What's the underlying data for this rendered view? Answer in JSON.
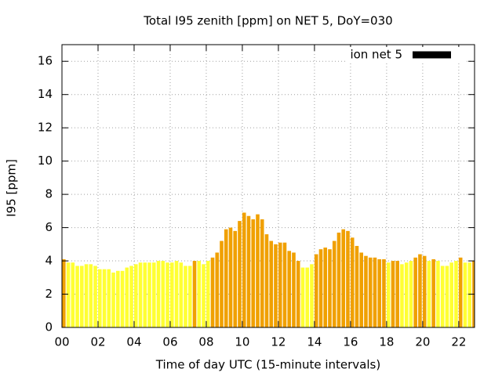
{
  "chart_data": {
    "type": "bar",
    "title": "Total I95 zenith [ppm] on NET 5, DoY=030",
    "x_label": "Time of day UTC (15-minute intervals)",
    "y_label": "I95 [ppm]",
    "x": [
      0,
      0.25,
      0.5,
      0.75,
      1,
      1.25,
      1.5,
      1.75,
      2,
      2.25,
      2.5,
      2.75,
      3,
      3.25,
      3.5,
      3.75,
      4,
      4.25,
      4.5,
      4.75,
      5,
      5.25,
      5.5,
      5.75,
      6,
      6.25,
      6.5,
      6.75,
      7,
      7.25,
      7.5,
      7.75,
      8,
      8.25,
      8.5,
      8.75,
      9,
      9.25,
      9.5,
      9.75,
      10,
      10.25,
      10.5,
      10.75,
      11,
      11.25,
      11.5,
      11.75,
      12,
      12.25,
      12.5,
      12.75,
      13,
      13.25,
      13.5,
      13.75,
      14,
      14.25,
      14.5,
      14.75,
      15,
      15.25,
      15.5,
      15.75,
      16,
      16.25,
      16.5,
      16.75,
      17,
      17.25,
      17.5,
      17.75,
      18,
      18.25,
      18.5,
      18.75,
      19,
      19.25,
      19.5,
      19.75,
      20,
      20.25,
      20.5,
      20.75,
      21,
      21.25,
      21.5,
      21.75,
      22,
      22.25,
      22.5,
      22.75
    ],
    "series": [
      {
        "name": "ion net 5",
        "color": "#000000",
        "values": [
          4.1,
          3.9,
          3.9,
          3.7,
          3.7,
          3.8,
          3.8,
          3.7,
          3.5,
          3.5,
          3.5,
          3.3,
          3.4,
          3.4,
          3.6,
          3.7,
          3.8,
          3.9,
          3.9,
          3.9,
          3.9,
          4.0,
          4.0,
          3.9,
          3.9,
          4.0,
          3.9,
          3.7,
          3.7,
          4.0,
          4.0,
          3.8,
          4.0,
          4.2,
          4.5,
          5.2,
          5.9,
          6.0,
          5.8,
          6.4,
          6.9,
          6.7,
          6.5,
          6.8,
          6.5,
          5.6,
          5.2,
          5.0,
          5.1,
          5.1,
          4.6,
          4.5,
          4.0,
          3.6,
          3.6,
          3.8,
          4.4,
          4.7,
          4.8,
          4.7,
          5.2,
          5.7,
          5.9,
          5.8,
          5.4,
          4.9,
          4.5,
          4.3,
          4.2,
          4.2,
          4.1,
          4.1,
          3.9,
          4.0,
          4.0,
          3.8,
          3.9,
          4.0,
          4.2,
          4.4,
          4.3,
          4.0,
          4.1,
          4.0,
          3.7,
          3.7,
          3.9,
          4.0,
          4.2,
          3.9,
          3.9,
          4.0
        ],
        "bar_colors": [
          "#f0a000",
          "#ffff33",
          "#ffff33",
          "#ffff33",
          "#ffff33",
          "#ffff33",
          "#ffff33",
          "#ffff33",
          "#ffff33",
          "#ffff33",
          "#ffff33",
          "#ffff33",
          "#ffff33",
          "#ffff33",
          "#ffff33",
          "#ffff33",
          "#ffff33",
          "#ffff33",
          "#ffff33",
          "#ffff33",
          "#ffff33",
          "#ffff33",
          "#ffff33",
          "#ffff33",
          "#ffff33",
          "#ffff33",
          "#ffff33",
          "#ffff33",
          "#ffff33",
          "#f0a000",
          "#ffff33",
          "#ffff33",
          "#ffff33",
          "#f0a000",
          "#f0a000",
          "#f0a000",
          "#f0a000",
          "#f0a000",
          "#f0a000",
          "#f0a000",
          "#f0a000",
          "#f0a000",
          "#f0a000",
          "#f0a000",
          "#f0a000",
          "#f0a000",
          "#f0a000",
          "#f0a000",
          "#f0a000",
          "#f0a000",
          "#f0a000",
          "#f0a000",
          "#f0a000",
          "#ffff33",
          "#ffff33",
          "#ffff33",
          "#f0a000",
          "#f0a000",
          "#f0a000",
          "#f0a000",
          "#f0a000",
          "#f0a000",
          "#f0a000",
          "#f0a000",
          "#f0a000",
          "#f0a000",
          "#f0a000",
          "#f0a000",
          "#f0a000",
          "#f0a000",
          "#f0a000",
          "#f0a000",
          "#ffff33",
          "#f0a000",
          "#f0a000",
          "#ffff33",
          "#ffff33",
          "#ffff33",
          "#f0a000",
          "#f0a000",
          "#f0a000",
          "#ffff33",
          "#f0a000",
          "#ffff33",
          "#ffff33",
          "#ffff33",
          "#ffff33",
          "#ffff33",
          "#f0a000",
          "#ffff33",
          "#ffff33",
          "#f0a000"
        ]
      }
    ],
    "bar_width": 0.2,
    "xlim": [
      0,
      22.875
    ],
    "xticks": [
      {
        "value": 0,
        "label": "00"
      },
      {
        "value": 2,
        "label": "02"
      },
      {
        "value": 4,
        "label": "04"
      },
      {
        "value": 6,
        "label": "06"
      },
      {
        "value": 8,
        "label": "08"
      },
      {
        "value": 10,
        "label": "10"
      },
      {
        "value": 12,
        "label": "12"
      },
      {
        "value": 14,
        "label": "14"
      },
      {
        "value": 16,
        "label": "16"
      },
      {
        "value": 18,
        "label": "18"
      },
      {
        "value": 20,
        "label": "20"
      },
      {
        "value": 22,
        "label": "22"
      }
    ],
    "ylim": [
      0,
      17
    ],
    "yticks": [
      0,
      2,
      4,
      6,
      8,
      10,
      12,
      14,
      16
    ],
    "grid": true,
    "legend": "top-right"
  }
}
